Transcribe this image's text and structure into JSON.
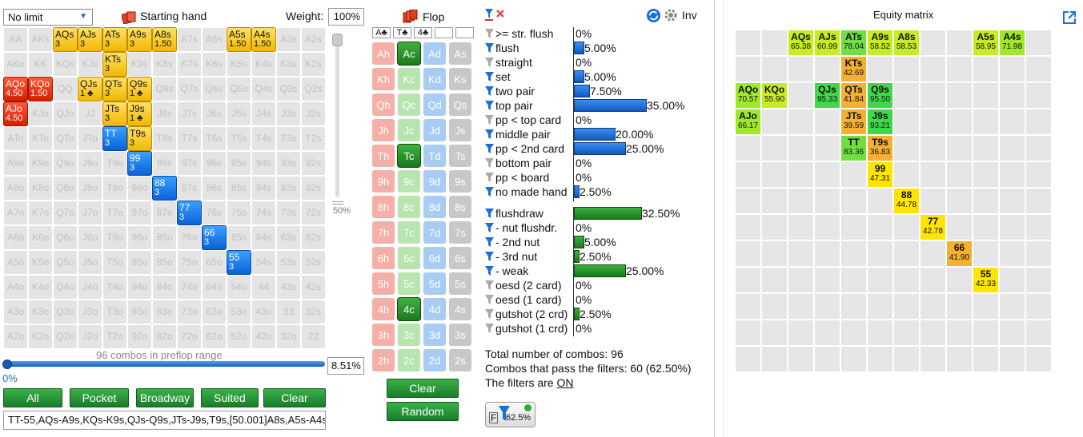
{
  "limit_select": {
    "value": "No limit"
  },
  "starting_hand": {
    "label": "Starting hand"
  },
  "weight": {
    "label": "Weight:",
    "value": "100%"
  },
  "vslider": {
    "label": "50%",
    "value_pct": 50
  },
  "range_grid": [
    [
      {
        "t": "AA"
      },
      {
        "t": "AKs"
      },
      {
        "t": "AQs",
        "s": "3",
        "c": "y"
      },
      {
        "t": "AJs",
        "s": "3",
        "c": "y"
      },
      {
        "t": "ATs",
        "s": "3",
        "c": "y"
      },
      {
        "t": "A9s",
        "s": "3",
        "c": "y"
      },
      {
        "t": "A8s",
        "s": "1.50",
        "c": "y"
      },
      {
        "t": "A7s"
      },
      {
        "t": "A6s"
      },
      {
        "t": "A5s",
        "s": "1.50",
        "c": "y"
      },
      {
        "t": "A4s",
        "s": "1.50",
        "c": "y"
      },
      {
        "t": "A3s"
      },
      {
        "t": "A2s"
      }
    ],
    [
      {
        "t": "AKo"
      },
      {
        "t": "KK"
      },
      {
        "t": "KQs"
      },
      {
        "t": "KJs"
      },
      {
        "t": "KTs",
        "s": "3",
        "c": "y"
      },
      {
        "t": "K9s"
      },
      {
        "t": "K8s"
      },
      {
        "t": "K7s"
      },
      {
        "t": "K6s"
      },
      {
        "t": "K5s"
      },
      {
        "t": "K4s"
      },
      {
        "t": "K3s"
      },
      {
        "t": "K2s"
      }
    ],
    [
      {
        "t": "AQo",
        "s": "4.50",
        "c": "r"
      },
      {
        "t": "KQo",
        "s": "1.50",
        "c": "r"
      },
      {
        "t": "QQ"
      },
      {
        "t": "QJs",
        "s": "1 ♣",
        "c": "y"
      },
      {
        "t": "QTs",
        "s": "3",
        "c": "y"
      },
      {
        "t": "Q9s",
        "s": "1 ♣",
        "c": "y"
      },
      {
        "t": "Q8s"
      },
      {
        "t": "Q7s"
      },
      {
        "t": "Q6s"
      },
      {
        "t": "Q5s"
      },
      {
        "t": "Q4s"
      },
      {
        "t": "Q3s"
      },
      {
        "t": "Q2s"
      }
    ],
    [
      {
        "t": "AJo",
        "s": "4.50",
        "c": "r"
      },
      {
        "t": "KJo"
      },
      {
        "t": "QJo"
      },
      {
        "t": "JJ"
      },
      {
        "t": "JTs",
        "s": "3",
        "c": "y"
      },
      {
        "t": "J9s",
        "s": "1 ♣",
        "c": "y"
      },
      {
        "t": "J8s"
      },
      {
        "t": "J7s"
      },
      {
        "t": "J6s"
      },
      {
        "t": "J5s"
      },
      {
        "t": "J4s"
      },
      {
        "t": "J3s"
      },
      {
        "t": "J2s"
      }
    ],
    [
      {
        "t": "ATo"
      },
      {
        "t": "KTo"
      },
      {
        "t": "QTo"
      },
      {
        "t": "JTo"
      },
      {
        "t": "TT",
        "s": "3",
        "c": "b"
      },
      {
        "t": "T9s",
        "s": "3",
        "c": "y"
      },
      {
        "t": "T8s"
      },
      {
        "t": "T7s"
      },
      {
        "t": "T6s"
      },
      {
        "t": "T5s"
      },
      {
        "t": "T4s"
      },
      {
        "t": "T3s"
      },
      {
        "t": "T2s"
      }
    ],
    [
      {
        "t": "A9o"
      },
      {
        "t": "K9o"
      },
      {
        "t": "Q9o"
      },
      {
        "t": "J9o"
      },
      {
        "t": "T9o"
      },
      {
        "t": "99",
        "s": "3",
        "c": "b"
      },
      {
        "t": "98s"
      },
      {
        "t": "97s"
      },
      {
        "t": "96s"
      },
      {
        "t": "95s"
      },
      {
        "t": "94s"
      },
      {
        "t": "93s"
      },
      {
        "t": "92s"
      }
    ],
    [
      {
        "t": "A8o"
      },
      {
        "t": "K8o"
      },
      {
        "t": "Q8o"
      },
      {
        "t": "J8o"
      },
      {
        "t": "T8o"
      },
      {
        "t": "98o"
      },
      {
        "t": "88",
        "s": "3",
        "c": "b"
      },
      {
        "t": "87s"
      },
      {
        "t": "86s"
      },
      {
        "t": "85s"
      },
      {
        "t": "84s"
      },
      {
        "t": "83s"
      },
      {
        "t": "82s"
      }
    ],
    [
      {
        "t": "A7o"
      },
      {
        "t": "K7o"
      },
      {
        "t": "Q7o"
      },
      {
        "t": "J7o"
      },
      {
        "t": "T7o"
      },
      {
        "t": "97o"
      },
      {
        "t": "87o"
      },
      {
        "t": "77",
        "s": "3",
        "c": "b"
      },
      {
        "t": "76s"
      },
      {
        "t": "75s"
      },
      {
        "t": "74s"
      },
      {
        "t": "73s"
      },
      {
        "t": "72s"
      }
    ],
    [
      {
        "t": "A6o"
      },
      {
        "t": "K6o"
      },
      {
        "t": "Q6o"
      },
      {
        "t": "J6o"
      },
      {
        "t": "T6o"
      },
      {
        "t": "96o"
      },
      {
        "t": "86o"
      },
      {
        "t": "76o"
      },
      {
        "t": "66",
        "s": "3",
        "c": "b"
      },
      {
        "t": "65s"
      },
      {
        "t": "64s"
      },
      {
        "t": "63s"
      },
      {
        "t": "62s"
      }
    ],
    [
      {
        "t": "A5o"
      },
      {
        "t": "K5o"
      },
      {
        "t": "Q5o"
      },
      {
        "t": "J5o"
      },
      {
        "t": "T5o"
      },
      {
        "t": "95o"
      },
      {
        "t": "85o"
      },
      {
        "t": "75o"
      },
      {
        "t": "65o"
      },
      {
        "t": "55",
        "s": "3",
        "c": "b"
      },
      {
        "t": "54s"
      },
      {
        "t": "53s"
      },
      {
        "t": "52s"
      }
    ],
    [
      {
        "t": "A4o"
      },
      {
        "t": "K4o"
      },
      {
        "t": "Q4o"
      },
      {
        "t": "J4o"
      },
      {
        "t": "T4o"
      },
      {
        "t": "94o"
      },
      {
        "t": "84o"
      },
      {
        "t": "74o"
      },
      {
        "t": "64o"
      },
      {
        "t": "54o"
      },
      {
        "t": "44"
      },
      {
        "t": "43s"
      },
      {
        "t": "42s"
      }
    ],
    [
      {
        "t": "A3o"
      },
      {
        "t": "K3o"
      },
      {
        "t": "Q3o"
      },
      {
        "t": "J3o"
      },
      {
        "t": "T3o"
      },
      {
        "t": "93o"
      },
      {
        "t": "83o"
      },
      {
        "t": "73o"
      },
      {
        "t": "63o"
      },
      {
        "t": "53o"
      },
      {
        "t": "43o"
      },
      {
        "t": "33"
      },
      {
        "t": "32s"
      }
    ],
    [
      {
        "t": "A2o"
      },
      {
        "t": "K2o"
      },
      {
        "t": "Q2o"
      },
      {
        "t": "J2o"
      },
      {
        "t": "T2o"
      },
      {
        "t": "92o"
      },
      {
        "t": "82o"
      },
      {
        "t": "72o"
      },
      {
        "t": "62o"
      },
      {
        "t": "52o"
      },
      {
        "t": "42o"
      },
      {
        "t": "32o"
      },
      {
        "t": "22"
      }
    ]
  ],
  "combos_caption": "96 combos in preflop range",
  "range_slider": {
    "min_label": "0%",
    "value": "8.51%",
    "value_pct": 8.51
  },
  "buttons": {
    "all": "All",
    "pocket": "Pocket",
    "broadway": "Broadway",
    "suited": "Suited",
    "clear": "Clear"
  },
  "range_text": "TT-55,AQs-A9s,KQs-K9s,QJs-Q9s,JTs-J9s,T9s,[50.001]A8s,A5s-A4s,",
  "flop": {
    "label": "Flop",
    "board": [
      "A♣",
      "T♣",
      "4♣",
      "",
      ""
    ],
    "clear": "Clear",
    "random": "Random"
  },
  "cards": [
    [
      "Ah",
      "Ac",
      "Ad",
      "As"
    ],
    [
      "Kh",
      "Kc",
      "Kd",
      "Ks"
    ],
    [
      "Qh",
      "Qc",
      "Qd",
      "Qs"
    ],
    [
      "Jh",
      "Jc",
      "Jd",
      "Js"
    ],
    [
      "Th",
      "Tc",
      "Td",
      "Ts"
    ],
    [
      "9h",
      "9c",
      "9d",
      "9s"
    ],
    [
      "8h",
      "8c",
      "8d",
      "8s"
    ],
    [
      "7h",
      "7c",
      "7d",
      "7s"
    ],
    [
      "6h",
      "6c",
      "6d",
      "6s"
    ],
    [
      "5h",
      "5c",
      "5d",
      "5s"
    ],
    [
      "4h",
      "4c",
      "4d",
      "4s"
    ],
    [
      "3h",
      "3c",
      "3d",
      "3s"
    ],
    [
      "2h",
      "2c",
      "2d",
      "2s"
    ]
  ],
  "selected_cards": [
    "Ac",
    "Tc",
    "4c"
  ],
  "inv": {
    "label": "Inv"
  },
  "filters": [
    {
      "label": ">= str. flush",
      "pct": "0%",
      "val": 0,
      "active": false
    },
    {
      "label": "flush",
      "pct": "5.00%",
      "val": 5,
      "active": true
    },
    {
      "label": "straight",
      "pct": "0%",
      "val": 0,
      "active": false
    },
    {
      "label": "set",
      "pct": "5.00%",
      "val": 5,
      "active": true
    },
    {
      "label": "two pair",
      "pct": "7.50%",
      "val": 7.5,
      "active": true
    },
    {
      "label": "top pair",
      "pct": "35.00%",
      "val": 35,
      "active": true
    },
    {
      "label": "pp < top card",
      "pct": "0%",
      "val": 0,
      "active": false
    },
    {
      "label": "middle pair",
      "pct": "20.00%",
      "val": 20,
      "active": true
    },
    {
      "label": "pp < 2nd card",
      "pct": "25.00%",
      "val": 25,
      "active": true
    },
    {
      "label": "bottom pair",
      "pct": "0%",
      "val": 0,
      "active": false
    },
    {
      "label": "pp < board",
      "pct": "0%",
      "val": 0,
      "active": false
    },
    {
      "label": "no made hand",
      "pct": "2.50%",
      "val": 2.5,
      "active": true
    }
  ],
  "draw_filters": [
    {
      "label": "flushdraw",
      "pct": "32.50%",
      "val": 32.5,
      "active": true
    },
    {
      "label": "- nut flushdr.",
      "pct": "0%",
      "val": 0,
      "active": true
    },
    {
      "label": "- 2nd nut",
      "pct": "5.00%",
      "val": 5,
      "active": true
    },
    {
      "label": "- 3rd nut",
      "pct": "2.50%",
      "val": 2.5,
      "active": true
    },
    {
      "label": "- weak",
      "pct": "25.00%",
      "val": 25,
      "active": true
    },
    {
      "label": "oesd (2 card)",
      "pct": "0%",
      "val": 0,
      "active": false
    },
    {
      "label": "oesd (1 card)",
      "pct": "0%",
      "val": 0,
      "active": false
    },
    {
      "label": "gutshot (2 crd)",
      "pct": "2.50%",
      "val": 2.5,
      "active": false
    },
    {
      "label": "gutshot (1 crd)",
      "pct": "0%",
      "val": 0,
      "active": false
    }
  ],
  "summary": {
    "total": "Total number of combos: 96",
    "pass": "Combos that pass the filters: 60 (62.50%)",
    "filters_prefix": "The filters are ",
    "filters_state": "ON"
  },
  "fbadge": {
    "letter": "F",
    "pct": "62.5%"
  },
  "equity": {
    "title": "Equity matrix",
    "cells": [
      {
        "r": 0,
        "c": 2,
        "h": "AQs",
        "e": "65.38",
        "k": "g2"
      },
      {
        "r": 0,
        "c": 3,
        "h": "AJs",
        "e": "60.99",
        "k": "g2"
      },
      {
        "r": 0,
        "c": 4,
        "h": "ATs",
        "e": "78.04",
        "k": "g3"
      },
      {
        "r": 0,
        "c": 5,
        "h": "A9s",
        "e": "58.52",
        "k": "g2"
      },
      {
        "r": 0,
        "c": 6,
        "h": "A8s",
        "e": "58.53",
        "k": "g2"
      },
      {
        "r": 0,
        "c": 9,
        "h": "A5s",
        "e": "58.95",
        "k": "g2"
      },
      {
        "r": 0,
        "c": 10,
        "h": "A4s",
        "e": "71.98",
        "k": "g1"
      },
      {
        "r": 1,
        "c": 4,
        "h": "KTs",
        "e": "42.69",
        "k": "o"
      },
      {
        "r": 2,
        "c": 0,
        "h": "AQo",
        "e": "70.57",
        "k": "g1"
      },
      {
        "r": 2,
        "c": 1,
        "h": "KQo",
        "e": "55.90",
        "k": "g2"
      },
      {
        "r": 2,
        "c": 3,
        "h": "QJs",
        "e": "95.33",
        "k": "g4"
      },
      {
        "r": 2,
        "c": 4,
        "h": "QTs",
        "e": "41.84",
        "k": "o"
      },
      {
        "r": 2,
        "c": 5,
        "h": "Q9s",
        "e": "95.50",
        "k": "g4"
      },
      {
        "r": 3,
        "c": 0,
        "h": "AJo",
        "e": "66.17",
        "k": "g1"
      },
      {
        "r": 3,
        "c": 4,
        "h": "JTs",
        "e": "39.59",
        "k": "o"
      },
      {
        "r": 3,
        "c": 5,
        "h": "J9s",
        "e": "93.21",
        "k": "g4"
      },
      {
        "r": 4,
        "c": 4,
        "h": "TT",
        "e": "83.36",
        "k": "g3"
      },
      {
        "r": 4,
        "c": 5,
        "h": "T9s",
        "e": "36.83",
        "k": "o"
      },
      {
        "r": 5,
        "c": 5,
        "h": "99",
        "e": "47.31",
        "k": "yy"
      },
      {
        "r": 6,
        "c": 6,
        "h": "88",
        "e": "44.78",
        "k": "yy"
      },
      {
        "r": 7,
        "c": 7,
        "h": "77",
        "e": "42.78",
        "k": "yy"
      },
      {
        "r": 8,
        "c": 8,
        "h": "66",
        "e": "41.90",
        "k": "o"
      },
      {
        "r": 9,
        "c": 9,
        "h": "55",
        "e": "42.33",
        "k": "yy"
      }
    ]
  },
  "colors": {
    "green_button": "#1a7d2a",
    "selected_yellow": "#f0b800",
    "selected_red": "#d81e00",
    "selected_blue": "#0a62d8",
    "bar_blue": "#1258c0",
    "bar_green": "#1a7a1a"
  }
}
